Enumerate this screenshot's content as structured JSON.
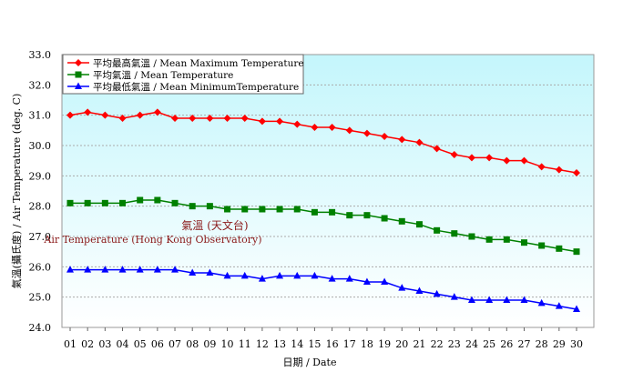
{
  "chart_data": {
    "type": "line",
    "title": "",
    "xlabel": "日期 / Date",
    "ylabel": "氣溫(攝氏度) / Air Temperature (deg. C)",
    "ylim": [
      24.0,
      33.0
    ],
    "yticks": [
      "24.0",
      "25.0",
      "26.0",
      "27.0",
      "28.0",
      "29.0",
      "30.0",
      "31.0",
      "32.0",
      "33.0"
    ],
    "categories": [
      "01",
      "02",
      "03",
      "04",
      "05",
      "06",
      "07",
      "08",
      "09",
      "10",
      "11",
      "12",
      "13",
      "14",
      "15",
      "16",
      "17",
      "18",
      "19",
      "20",
      "21",
      "22",
      "23",
      "24",
      "25",
      "26",
      "27",
      "28",
      "29",
      "30"
    ],
    "grid": true,
    "legend_placement": "top-left",
    "annotation": {
      "line1": "氣溫 (天文台)",
      "line2": "Air Temperature (Hong Kong Observatory)"
    },
    "series": [
      {
        "name": "平均最高氣溫 / Mean Maximum Temperature",
        "color": "#ff0000",
        "marker": "diamond",
        "values": [
          31.0,
          31.1,
          31.0,
          30.9,
          31.0,
          31.1,
          30.9,
          30.9,
          30.9,
          30.9,
          30.9,
          30.8,
          30.8,
          30.7,
          30.6,
          30.6,
          30.5,
          30.4,
          30.3,
          30.2,
          30.1,
          29.9,
          29.7,
          29.6,
          29.6,
          29.5,
          29.5,
          29.3,
          29.2,
          29.1
        ]
      },
      {
        "name": "平均氣溫 / Mean Temperature",
        "color": "#008000",
        "marker": "square",
        "values": [
          28.1,
          28.1,
          28.1,
          28.1,
          28.2,
          28.2,
          28.1,
          28.0,
          28.0,
          27.9,
          27.9,
          27.9,
          27.9,
          27.9,
          27.8,
          27.8,
          27.7,
          27.7,
          27.6,
          27.5,
          27.4,
          27.2,
          27.1,
          27.0,
          26.9,
          26.9,
          26.8,
          26.7,
          26.6,
          26.5
        ]
      },
      {
        "name": "平均最低氣溫 / Mean MinimumTemperature",
        "color": "#0000ff",
        "marker": "triangle",
        "values": [
          25.9,
          25.9,
          25.9,
          25.9,
          25.9,
          25.9,
          25.9,
          25.8,
          25.8,
          25.7,
          25.7,
          25.6,
          25.7,
          25.7,
          25.7,
          25.6,
          25.6,
          25.5,
          25.5,
          25.3,
          25.2,
          25.1,
          25.0,
          24.9,
          24.9,
          24.9,
          24.9,
          24.8,
          24.7,
          24.6
        ]
      }
    ]
  }
}
